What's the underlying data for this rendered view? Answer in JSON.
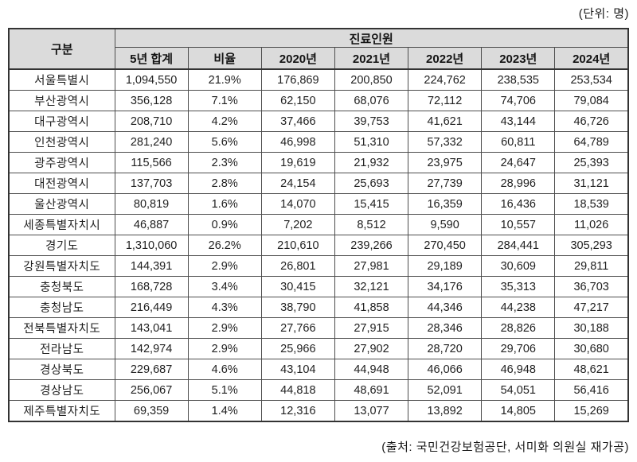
{
  "unit_label": "(단위: 명)",
  "source_label": "(출처: 국민건강보험공단, 서미화 의원실 재가공)",
  "table": {
    "corner_header": "구분",
    "group_header": "진료인원",
    "columns": [
      "5년 합계",
      "비율",
      "2020년",
      "2021년",
      "2022년",
      "2023년",
      "2024년"
    ],
    "rows": [
      {
        "region": "서울특별시",
        "values": [
          "1,094,550",
          "21.9%",
          "176,869",
          "200,850",
          "224,762",
          "238,535",
          "253,534"
        ]
      },
      {
        "region": "부산광역시",
        "values": [
          "356,128",
          "7.1%",
          "62,150",
          "68,076",
          "72,112",
          "74,706",
          "79,084"
        ]
      },
      {
        "region": "대구광역시",
        "values": [
          "208,710",
          "4.2%",
          "37,466",
          "39,753",
          "41,621",
          "43,144",
          "46,726"
        ]
      },
      {
        "region": "인천광역시",
        "values": [
          "281,240",
          "5.6%",
          "46,998",
          "51,310",
          "57,332",
          "60,811",
          "64,789"
        ]
      },
      {
        "region": "광주광역시",
        "values": [
          "115,566",
          "2.3%",
          "19,619",
          "21,932",
          "23,975",
          "24,647",
          "25,393"
        ]
      },
      {
        "region": "대전광역시",
        "values": [
          "137,703",
          "2.8%",
          "24,154",
          "25,693",
          "27,739",
          "28,996",
          "31,121"
        ]
      },
      {
        "region": "울산광역시",
        "values": [
          "80,819",
          "1.6%",
          "14,070",
          "15,415",
          "16,359",
          "16,436",
          "18,539"
        ]
      },
      {
        "region": "세종특별자치시",
        "values": [
          "46,887",
          "0.9%",
          "7,202",
          "8,512",
          "9,590",
          "10,557",
          "11,026"
        ]
      },
      {
        "region": "경기도",
        "values": [
          "1,310,060",
          "26.2%",
          "210,610",
          "239,266",
          "270,450",
          "284,441",
          "305,293"
        ]
      },
      {
        "region": "강원특별자치도",
        "values": [
          "144,391",
          "2.9%",
          "26,801",
          "27,981",
          "29,189",
          "30,609",
          "29,811"
        ]
      },
      {
        "region": "충청북도",
        "values": [
          "168,728",
          "3.4%",
          "30,415",
          "32,121",
          "34,176",
          "35,313",
          "36,703"
        ]
      },
      {
        "region": "충청남도",
        "values": [
          "216,449",
          "4.3%",
          "38,790",
          "41,858",
          "44,346",
          "44,238",
          "47,217"
        ]
      },
      {
        "region": "전북특별자치도",
        "values": [
          "143,041",
          "2.9%",
          "27,766",
          "27,915",
          "28,346",
          "28,826",
          "30,188"
        ]
      },
      {
        "region": "전라남도",
        "values": [
          "142,974",
          "2.9%",
          "25,966",
          "27,902",
          "28,720",
          "29,706",
          "30,680"
        ]
      },
      {
        "region": "경상북도",
        "values": [
          "229,687",
          "4.6%",
          "43,104",
          "44,948",
          "46,066",
          "46,948",
          "48,621"
        ]
      },
      {
        "region": "경상남도",
        "values": [
          "256,067",
          "5.1%",
          "44,818",
          "48,691",
          "52,091",
          "54,051",
          "56,416"
        ]
      },
      {
        "region": "제주특별자치도",
        "values": [
          "69,359",
          "1.4%",
          "12,316",
          "13,077",
          "13,892",
          "14,805",
          "15,269"
        ]
      }
    ]
  },
  "colors": {
    "header_bg": "#dbdbdb",
    "border_outer": "#333333",
    "border_inner": "#4d4d4d",
    "text": "#1a1a1a"
  }
}
